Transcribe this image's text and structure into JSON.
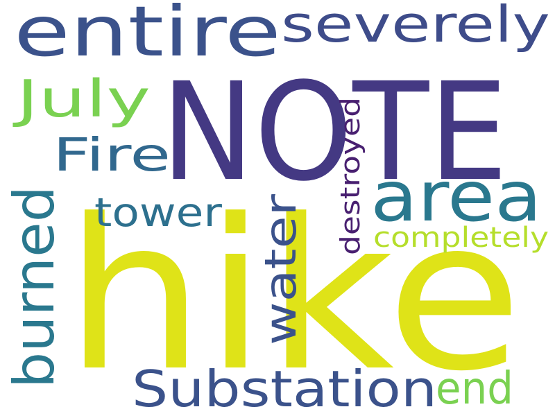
{
  "words": [
    {
      "text": "NOTE",
      "color": "#443983",
      "orientation": "horizontal"
    },
    {
      "text": "hike",
      "color": "#dfe318",
      "orientation": "horizontal"
    },
    {
      "text": "entire",
      "color": "#3b528b",
      "orientation": "horizontal"
    },
    {
      "text": "severely",
      "color": "#3e4c8a",
      "orientation": "horizontal"
    },
    {
      "text": "July",
      "color": "#7ad151",
      "orientation": "horizontal"
    },
    {
      "text": "Fire",
      "color": "#31688e",
      "orientation": "horizontal"
    },
    {
      "text": "area",
      "color": "#2a788e",
      "orientation": "horizontal"
    },
    {
      "text": "tower",
      "color": "#2d708e",
      "orientation": "horizontal"
    },
    {
      "text": "burned",
      "color": "#2a788e",
      "orientation": "vertical"
    },
    {
      "text": "water",
      "color": "#3b528b",
      "orientation": "vertical"
    },
    {
      "text": "destroyed",
      "color": "#481f70",
      "orientation": "vertical"
    },
    {
      "text": "completely",
      "color": "#b5de2b",
      "orientation": "horizontal"
    },
    {
      "text": "Substation",
      "color": "#3b528b",
      "orientation": "horizontal"
    },
    {
      "text": "end",
      "color": "#7ad151",
      "orientation": "horizontal"
    }
  ]
}
